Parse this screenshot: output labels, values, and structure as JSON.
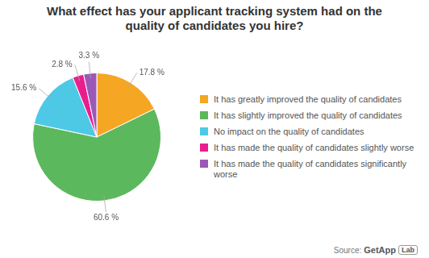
{
  "chart_data": {
    "type": "pie",
    "title": "What effect has your applicant tracking system had on the quality of candidates you hire?",
    "categories": [
      "It has greatly improved the quality of candidates",
      "It has slightly improved the quality of candidates",
      "No impact on the quality of candidates",
      "It has made the quality of candidates slightly worse",
      "It has made the quality of candidates significantly worse"
    ],
    "values": [
      17.8,
      60.6,
      15.6,
      2.8,
      3.3
    ],
    "value_labels": [
      "17.8 %",
      "60.6 %",
      "15.6 %",
      "2.8 %",
      "3.3 %"
    ],
    "colors": [
      "#f5a623",
      "#5cb85c",
      "#4dc9e6",
      "#e91e8c",
      "#9b59b6"
    ],
    "data_labels": true,
    "legend": "right",
    "annotations": [
      "Source:",
      "GetApp",
      "Lab"
    ]
  }
}
